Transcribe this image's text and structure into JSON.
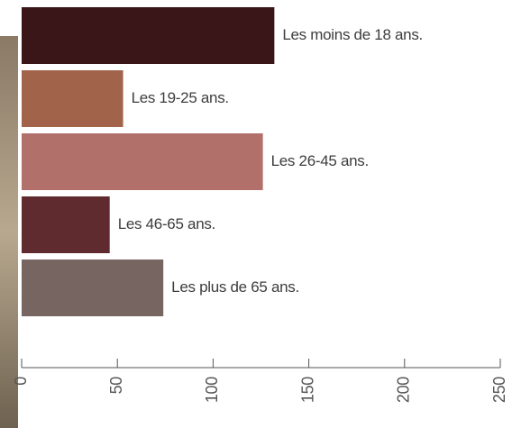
{
  "chart_data": {
    "type": "bar",
    "orientation": "horizontal",
    "categories": [
      "Les moins de 18 ans.",
      "Les 19-25 ans.",
      "Les 26-45 ans.",
      "Les 46-65 ans.",
      "Les plus de 65 ans."
    ],
    "values": [
      132,
      53,
      126,
      46,
      74
    ],
    "colors": [
      "#3b1619",
      "#a2634b",
      "#b1716a",
      "#5f2b2f",
      "#776561"
    ],
    "xlim": [
      0,
      250
    ],
    "xticks": [
      0,
      50,
      100,
      150,
      200,
      250
    ]
  }
}
